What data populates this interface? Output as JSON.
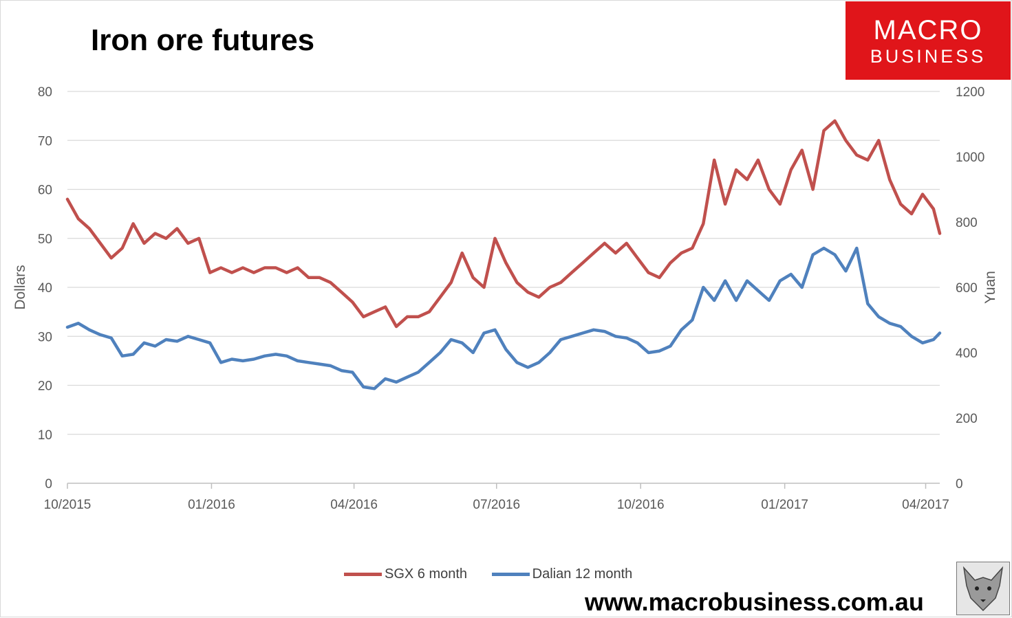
{
  "title": "Iron ore futures",
  "logo": {
    "line1": "MACRO",
    "line2": "BUSINESS",
    "color": "#e0151a",
    "icon": "wolf-head-icon"
  },
  "website": "www.macrobusiness.com.au",
  "chart_data": {
    "type": "line",
    "title": "Iron ore futures",
    "ylabel": "Dollars",
    "y2label": "Yuan",
    "ylim": [
      0,
      80
    ],
    "y2lim": [
      0,
      1200
    ],
    "yticks": [
      0,
      10,
      20,
      30,
      40,
      50,
      60,
      70,
      80
    ],
    "y2ticks": [
      0,
      200,
      400,
      600,
      800,
      1000,
      1200
    ],
    "xlim": [
      "2015-10-01",
      "2017-04-10"
    ],
    "xticks": [
      "10/2015",
      "01/2016",
      "04/2016",
      "07/2016",
      "10/2016",
      "01/2017",
      "04/2017"
    ],
    "xtick_dates": [
      "2015-10-01",
      "2016-01-01",
      "2016-04-01",
      "2016-07-01",
      "2016-10-01",
      "2017-01-01",
      "2017-04-01"
    ],
    "grid": true,
    "legend": "bottom",
    "series": [
      {
        "name": "SGX 6 month",
        "axis": "left",
        "color": "#c0504d",
        "x": [
          "2015-10-01",
          "2015-10-08",
          "2015-10-15",
          "2015-10-22",
          "2015-10-29",
          "2015-11-05",
          "2015-11-12",
          "2015-11-19",
          "2015-11-26",
          "2015-12-03",
          "2015-12-10",
          "2015-12-17",
          "2015-12-24",
          "2015-12-31",
          "2016-01-07",
          "2016-01-14",
          "2016-01-21",
          "2016-01-28",
          "2016-02-04",
          "2016-02-11",
          "2016-02-18",
          "2016-02-25",
          "2016-03-03",
          "2016-03-10",
          "2016-03-17",
          "2016-03-24",
          "2016-03-31",
          "2016-04-07",
          "2016-04-14",
          "2016-04-21",
          "2016-04-28",
          "2016-05-05",
          "2016-05-12",
          "2016-05-19",
          "2016-05-26",
          "2016-06-02",
          "2016-06-09",
          "2016-06-16",
          "2016-06-23",
          "2016-06-30",
          "2016-07-07",
          "2016-07-14",
          "2016-07-21",
          "2016-07-28",
          "2016-08-04",
          "2016-08-11",
          "2016-08-18",
          "2016-08-25",
          "2016-09-01",
          "2016-09-08",
          "2016-09-15",
          "2016-09-22",
          "2016-09-29",
          "2016-10-06",
          "2016-10-13",
          "2016-10-20",
          "2016-10-27",
          "2016-11-03",
          "2016-11-10",
          "2016-11-17",
          "2016-11-24",
          "2016-12-01",
          "2016-12-08",
          "2016-12-15",
          "2016-12-22",
          "2016-12-29",
          "2017-01-05",
          "2017-01-12",
          "2017-01-19",
          "2017-01-26",
          "2017-02-02",
          "2017-02-09",
          "2017-02-16",
          "2017-02-23",
          "2017-03-02",
          "2017-03-09",
          "2017-03-16",
          "2017-03-23",
          "2017-03-30",
          "2017-04-06",
          "2017-04-10"
        ],
        "values": [
          58,
          54,
          52,
          49,
          46,
          48,
          53,
          49,
          51,
          50,
          52,
          49,
          50,
          43,
          44,
          43,
          44,
          43,
          44,
          44,
          43,
          44,
          42,
          42,
          41,
          39,
          37,
          34,
          35,
          36,
          32,
          34,
          34,
          35,
          38,
          41,
          47,
          42,
          40,
          50,
          45,
          41,
          39,
          38,
          40,
          41,
          43,
          45,
          47,
          49,
          47,
          49,
          46,
          43,
          42,
          45,
          47,
          48,
          53,
          66,
          57,
          64,
          62,
          66,
          60,
          57,
          64,
          68,
          60,
          72,
          74,
          70,
          67,
          66,
          70,
          62,
          57,
          55,
          59,
          56,
          51
        ]
      },
      {
        "name": "Dalian 12 month",
        "axis": "right",
        "color": "#4f81bd",
        "x": [
          "2015-10-01",
          "2015-10-08",
          "2015-10-15",
          "2015-10-22",
          "2015-10-29",
          "2015-11-05",
          "2015-11-12",
          "2015-11-19",
          "2015-11-26",
          "2015-12-03",
          "2015-12-10",
          "2015-12-17",
          "2015-12-24",
          "2015-12-31",
          "2016-01-07",
          "2016-01-14",
          "2016-01-21",
          "2016-01-28",
          "2016-02-04",
          "2016-02-11",
          "2016-02-18",
          "2016-02-25",
          "2016-03-03",
          "2016-03-10",
          "2016-03-17",
          "2016-03-24",
          "2016-03-31",
          "2016-04-07",
          "2016-04-14",
          "2016-04-21",
          "2016-04-28",
          "2016-05-05",
          "2016-05-12",
          "2016-05-19",
          "2016-05-26",
          "2016-06-02",
          "2016-06-09",
          "2016-06-16",
          "2016-06-23",
          "2016-06-30",
          "2016-07-07",
          "2016-07-14",
          "2016-07-21",
          "2016-07-28",
          "2016-08-04",
          "2016-08-11",
          "2016-08-18",
          "2016-08-25",
          "2016-09-01",
          "2016-09-08",
          "2016-09-15",
          "2016-09-22",
          "2016-09-29",
          "2016-10-06",
          "2016-10-13",
          "2016-10-20",
          "2016-10-27",
          "2016-11-03",
          "2016-11-10",
          "2016-11-17",
          "2016-11-24",
          "2016-12-01",
          "2016-12-08",
          "2016-12-15",
          "2016-12-22",
          "2016-12-29",
          "2017-01-05",
          "2017-01-12",
          "2017-01-19",
          "2017-01-26",
          "2017-02-02",
          "2017-02-09",
          "2017-02-16",
          "2017-02-23",
          "2017-03-02",
          "2017-03-09",
          "2017-03-16",
          "2017-03-23",
          "2017-03-30",
          "2017-04-06",
          "2017-04-10"
        ],
        "values": [
          478,
          490,
          470,
          455,
          445,
          390,
          395,
          430,
          420,
          440,
          435,
          450,
          440,
          430,
          370,
          380,
          375,
          380,
          390,
          395,
          390,
          375,
          370,
          365,
          360,
          345,
          340,
          295,
          290,
          320,
          310,
          325,
          340,
          370,
          400,
          440,
          430,
          400,
          460,
          470,
          410,
          370,
          355,
          370,
          400,
          440,
          450,
          460,
          470,
          465,
          450,
          445,
          430,
          400,
          405,
          420,
          470,
          500,
          600,
          560,
          620,
          560,
          620,
          590,
          560,
          620,
          640,
          600,
          700,
          720,
          700,
          650,
          720,
          550,
          510,
          490,
          480,
          450,
          430,
          440,
          460
        ]
      }
    ]
  }
}
